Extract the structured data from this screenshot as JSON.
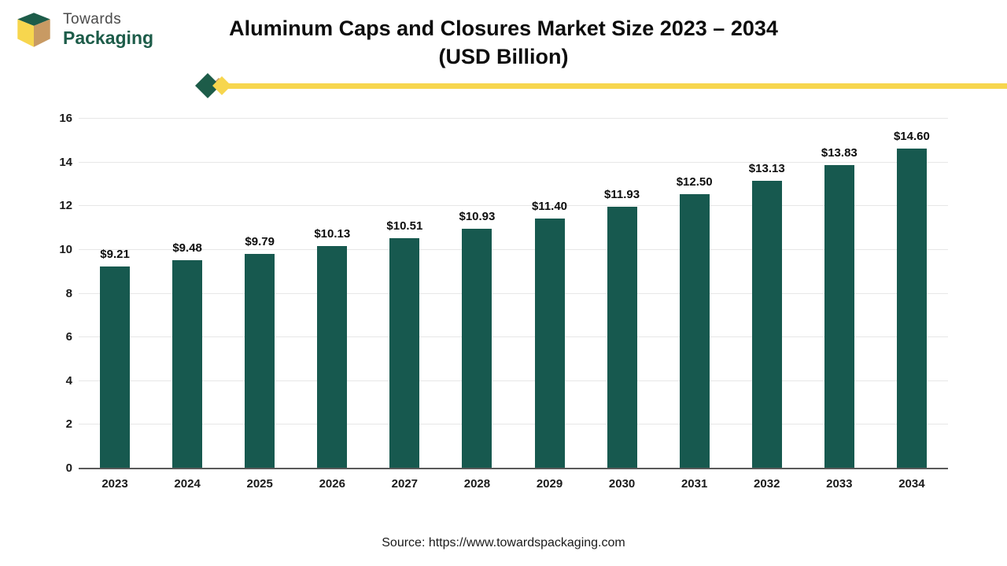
{
  "logo": {
    "line1": "Towards",
    "line2": "Packaging"
  },
  "title": {
    "line1": "Aluminum Caps and Closures Market Size 2023 – 2034",
    "line2": "(USD Billion)"
  },
  "source": "Source: https://www.towardspackaging.com",
  "colors": {
    "bar": "#17594f",
    "accent_yellow": "#f7d64e",
    "logo_green": "#1d5c49",
    "logo_tan": "#c89a63",
    "grid": "#e7e7e7"
  },
  "chart_data": {
    "type": "bar",
    "title": "Aluminum Caps and Closures Market Size 2023 – 2034 (USD Billion)",
    "categories": [
      "2023",
      "2024",
      "2025",
      "2026",
      "2027",
      "2028",
      "2029",
      "2030",
      "2031",
      "2032",
      "2033",
      "2034"
    ],
    "values": [
      9.21,
      9.48,
      9.79,
      10.13,
      10.51,
      10.93,
      11.4,
      11.93,
      12.5,
      13.13,
      13.83,
      14.6
    ],
    "labels": [
      "$9.21",
      "$9.48",
      "$9.79",
      "$10.13",
      "$10.51",
      "$10.93",
      "$11.40",
      "$11.93",
      "$12.50",
      "$13.13",
      "$13.83",
      "$14.60"
    ],
    "xlabel": "",
    "ylabel": "",
    "ylim": [
      0,
      16
    ],
    "yticks": [
      0,
      2,
      4,
      6,
      8,
      10,
      12,
      14,
      16
    ],
    "grid": true,
    "legend": "none",
    "bar_color": "#17594f"
  }
}
